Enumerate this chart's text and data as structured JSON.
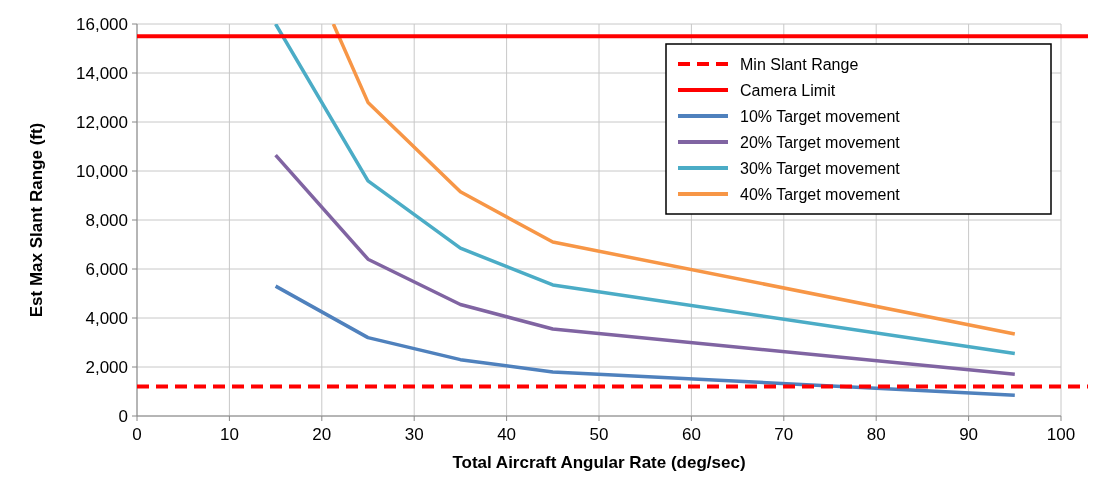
{
  "chart_data": {
    "type": "line",
    "xlabel": "Total Aircraft Angular Rate (deg/sec)",
    "ylabel": "Est Max Slant Range (ft)",
    "xlim": [
      0,
      100
    ],
    "xticks": [
      0,
      10,
      20,
      30,
      40,
      50,
      60,
      70,
      80,
      90,
      100
    ],
    "ylim": [
      0,
      16000
    ],
    "yticks": [
      {
        "value": 0,
        "label": "0"
      },
      {
        "value": 2000,
        "label": "2,000"
      },
      {
        "value": 4000,
        "label": "4,000"
      },
      {
        "value": 6000,
        "label": "6,000"
      },
      {
        "value": 8000,
        "label": "8,000"
      },
      {
        "value": 10000,
        "label": "10,000"
      },
      {
        "value": 12000,
        "label": "12,000"
      },
      {
        "value": 14000,
        "label": "14,000"
      },
      {
        "value": 16000,
        "label": "16,000"
      }
    ],
    "grid": true,
    "legend": "top right",
    "line_style": "solid",
    "ref_lines": [
      {
        "axis": "y",
        "value": 1200,
        "label": "Min Slant Range",
        "color": "#ff0000",
        "line_style": "dashed"
      },
      {
        "axis": "y",
        "value": 15500,
        "label": "Camera Limit",
        "color": "#ff0000",
        "line_style": "solid"
      }
    ],
    "series": [
      {
        "name": "10% Target movement",
        "color": "#4f81bd",
        "x": [
          15,
          25,
          35,
          45,
          95
        ],
        "values": [
          5300,
          3200,
          2300,
          1800,
          850
        ]
      },
      {
        "name": "20% Target movement",
        "color": "#8064a2",
        "x": [
          15,
          25,
          35,
          45,
          95
        ],
        "values": [
          10650,
          6400,
          4550,
          3550,
          1700
        ]
      },
      {
        "name": "30% Target movement",
        "color": "#4bacc6",
        "x": [
          15,
          25,
          35,
          45,
          95
        ],
        "values": [
          16000,
          9600,
          6850,
          5350,
          2550
        ]
      },
      {
        "name": "40% Target movement",
        "color": "#f79646",
        "x": [
          21.25,
          25,
          35,
          45,
          95
        ],
        "values": [
          16000,
          12800,
          9150,
          7100,
          3350
        ]
      }
    ]
  }
}
